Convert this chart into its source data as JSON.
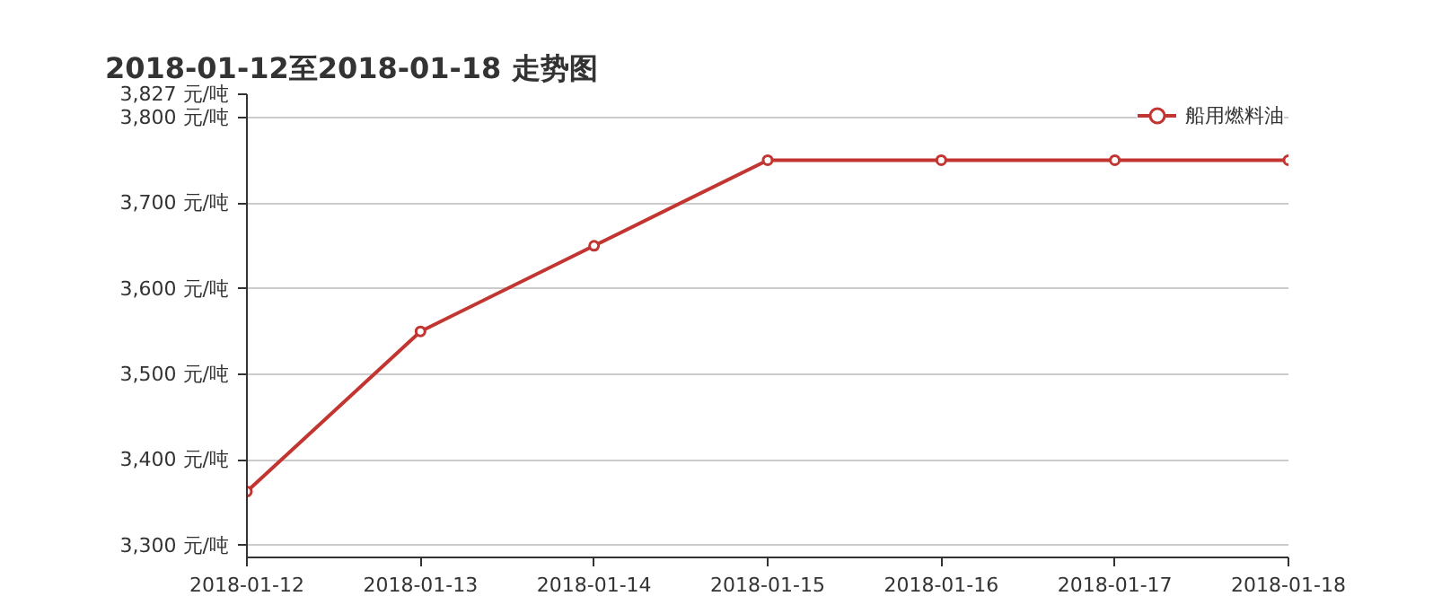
{
  "chart_data": {
    "type": "line",
    "title": "2018-01-12至2018-01-18 走势图",
    "categories": [
      "2018-01-12",
      "2018-01-13",
      "2018-01-14",
      "2018-01-15",
      "2018-01-16",
      "2018-01-17",
      "2018-01-18"
    ],
    "series": [
      {
        "name": "船用燃料油",
        "color": "#c23531",
        "values": [
          3363,
          3550,
          3650,
          3750,
          3750,
          3750,
          3750
        ]
      }
    ],
    "ylim": [
      3286,
      3827
    ],
    "yticks": [
      {
        "value": 3300,
        "label": "3,300 元/吨"
      },
      {
        "value": 3400,
        "label": "3,400 元/吨"
      },
      {
        "value": 3500,
        "label": "3,500 元/吨"
      },
      {
        "value": 3600,
        "label": "3,600 元/吨"
      },
      {
        "value": 3700,
        "label": "3,700 元/吨"
      },
      {
        "value": 3800,
        "label": "3,800 元/吨"
      },
      {
        "value": 3827,
        "label": "3,827 元/吨"
      }
    ],
    "grid": "y",
    "legend": "top right",
    "marker": "circle",
    "line_style": "solid"
  }
}
